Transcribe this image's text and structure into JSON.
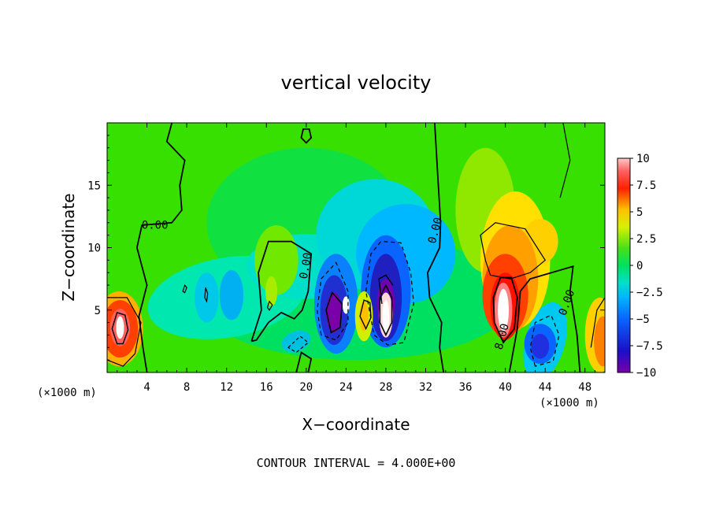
{
  "chart_data": {
    "type": "heatmap",
    "title": "vertical velocity",
    "xlabel": "X−coordinate",
    "ylabel": "Z−coordinate",
    "x_unit_label": "(×1000 m)",
    "y_unit_label": "(×1000 m)",
    "xlim": [
      0,
      50
    ],
    "ylim": [
      0,
      20
    ],
    "x_ticks": [
      4,
      8,
      12,
      16,
      20,
      24,
      28,
      32,
      36,
      40,
      44,
      48
    ],
    "y_ticks": [
      5,
      10,
      15
    ],
    "colorbar": {
      "min": -10,
      "max": 10,
      "tick_values": [
        10,
        7.5,
        5,
        2.5,
        0,
        -2.5,
        -5,
        -7.5,
        -10
      ],
      "tick_labels": [
        "10",
        "7.5",
        "5",
        "2.5",
        "0",
        "−2.5",
        "−5",
        "−7.5",
        "−10"
      ]
    },
    "contour_interval_text": "CONTOUR INTERVAL = 4.000E+00",
    "contour_labels": [
      {
        "text": "0.00",
        "x": 4.8,
        "y": 11.5
      },
      {
        "text": "0.00",
        "x": 20.3,
        "y": 8.5
      },
      {
        "text": "0.00",
        "x": 33.3,
        "y": 11.3
      },
      {
        "text": "0.00",
        "x": 46.5,
        "y": 5.5
      },
      {
        "text": "8.00",
        "x": 40.0,
        "y": 2.8
      }
    ],
    "features": [
      {
        "type": "updraft",
        "x": 1.3,
        "z": 3.6,
        "peak": 10
      },
      {
        "type": "updraft",
        "x": 40.0,
        "z": 5.0,
        "peak": 10
      },
      {
        "type": "updraft",
        "x": 28.0,
        "z": 4.5,
        "peak": 10
      },
      {
        "type": "updraft",
        "x": 24.0,
        "z": 5.4,
        "peak": 10
      },
      {
        "type": "downdraft",
        "x": 22.8,
        "z": 5.0,
        "peak": -10
      },
      {
        "type": "downdraft",
        "x": 28.0,
        "z": 6.0,
        "peak": -9
      },
      {
        "type": "downdraft",
        "x": 43.5,
        "z": 2.3,
        "peak": -7
      },
      {
        "type": "updraft",
        "x": 16.5,
        "z": 6.5,
        "peak": 2
      }
    ]
  }
}
